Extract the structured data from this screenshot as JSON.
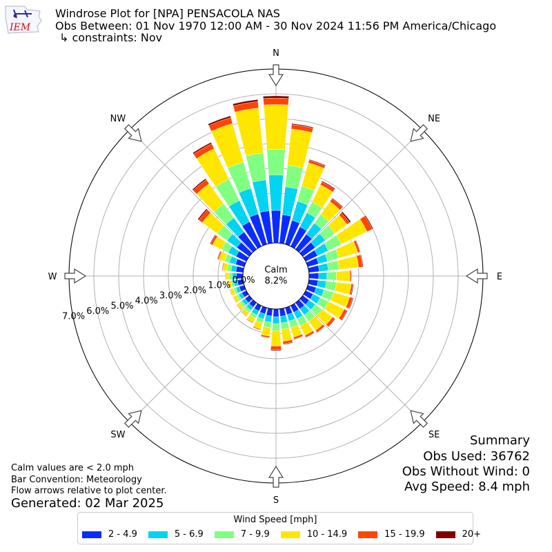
{
  "header": {
    "title": "Windrose Plot for [NPA] PENSACOLA NAS",
    "obs_between": "Obs Between: 01 Nov 1970 12:00 AM - 30 Nov 2024 11:56 PM America/Chicago",
    "constraints": "↳ constraints: Nov",
    "logo_text": "IEM"
  },
  "notes": {
    "calm_note": "Calm values are < 2.0 mph",
    "bar_convention": "Bar Convention: Meteorology",
    "flow_arrows": "Flow arrows relative to plot center.",
    "generated": "Generated: 02 Mar 2025"
  },
  "summary": {
    "title": "Summary",
    "obs_used": "Obs Used: 36762",
    "obs_without_wind": "Obs Without Wind: 0",
    "avg_speed": "Avg Speed: 8.4 mph"
  },
  "chart_data": {
    "type": "windrose",
    "directions_label": [
      "N",
      "NE",
      "E",
      "SE",
      "S",
      "SW",
      "W",
      "NW"
    ],
    "radial_ticks": [
      "0.0%",
      "1.0%",
      "2.0%",
      "3.0%",
      "4.0%",
      "5.0%",
      "6.0%",
      "7.0%"
    ],
    "radial_max": 7.0,
    "calm_label": "Calm",
    "calm_value": "8.2%",
    "legend_title": "Wind Speed [mph]",
    "bins": [
      "2 - 4.9",
      "5 - 6.9",
      "7 - 9.9",
      "10 - 14.9",
      "15 - 19.9",
      "20+"
    ],
    "colors": [
      "#0b2cff",
      "#00d4f0",
      "#80ff80",
      "#ffe600",
      "#ff4500",
      "#800000"
    ],
    "sector_width_deg": 10,
    "sectors": [
      {
        "dir": 0,
        "values": [
          1.31,
          1.43,
          1.03,
          1.8,
          0.26,
          0.09
        ]
      },
      {
        "dir": 10,
        "values": [
          1.15,
          1.13,
          0.87,
          1.47,
          0.18,
          0.04
        ]
      },
      {
        "dir": 20,
        "values": [
          1.0,
          0.8,
          0.63,
          0.98,
          0.11,
          0.03
        ]
      },
      {
        "dir": 30,
        "values": [
          0.87,
          0.63,
          0.48,
          0.77,
          0.13,
          0.04
        ]
      },
      {
        "dir": 40,
        "values": [
          0.75,
          0.55,
          0.43,
          0.64,
          0.14,
          0.03
        ]
      },
      {
        "dir": 50,
        "values": [
          0.62,
          0.5,
          0.47,
          0.61,
          0.13,
          0.06
        ]
      },
      {
        "dir": 60,
        "values": [
          0.53,
          0.48,
          0.58,
          1.16,
          0.23,
          0.04
        ]
      },
      {
        "dir": 70,
        "values": [
          0.45,
          0.38,
          0.47,
          0.79,
          0.09,
          0.02
        ]
      },
      {
        "dir": 80,
        "values": [
          0.42,
          0.37,
          0.43,
          0.79,
          0.16,
          0.03
        ]
      },
      {
        "dir": 90,
        "values": [
          0.39,
          0.33,
          0.38,
          0.54,
          0.05,
          0.02
        ]
      },
      {
        "dir": 100,
        "values": [
          0.37,
          0.34,
          0.4,
          0.6,
          0.07,
          0.03
        ]
      },
      {
        "dir": 110,
        "values": [
          0.35,
          0.33,
          0.4,
          0.67,
          0.13,
          0.03
        ]
      },
      {
        "dir": 120,
        "values": [
          0.33,
          0.32,
          0.37,
          0.7,
          0.12,
          0.03
        ]
      },
      {
        "dir": 130,
        "values": [
          0.32,
          0.3,
          0.33,
          0.53,
          0.1,
          0.03
        ]
      },
      {
        "dir": 140,
        "values": [
          0.31,
          0.3,
          0.3,
          0.47,
          0.09,
          0.02
        ]
      },
      {
        "dir": 150,
        "values": [
          0.3,
          0.29,
          0.3,
          0.44,
          0.08,
          0.02
        ]
      },
      {
        "dir": 160,
        "values": [
          0.29,
          0.27,
          0.27,
          0.4,
          0.08,
          0.02
        ]
      },
      {
        "dir": 170,
        "values": [
          0.3,
          0.27,
          0.26,
          0.48,
          0.1,
          0.03
        ]
      },
      {
        "dir": 180,
        "values": [
          0.31,
          0.28,
          0.28,
          0.62,
          0.14,
          0.04
        ]
      },
      {
        "dir": 190,
        "values": [
          0.29,
          0.25,
          0.22,
          0.34,
          0.06,
          0.02
        ]
      },
      {
        "dir": 200,
        "values": [
          0.26,
          0.21,
          0.17,
          0.25,
          0.04,
          0.01
        ]
      },
      {
        "dir": 210,
        "values": [
          0.24,
          0.18,
          0.14,
          0.19,
          0.03,
          0.01
        ]
      },
      {
        "dir": 220,
        "values": [
          0.22,
          0.16,
          0.12,
          0.16,
          0.02,
          0.01
        ]
      },
      {
        "dir": 230,
        "values": [
          0.21,
          0.15,
          0.11,
          0.14,
          0.02,
          0.01
        ]
      },
      {
        "dir": 240,
        "values": [
          0.2,
          0.14,
          0.1,
          0.13,
          0.02,
          0.01
        ]
      },
      {
        "dir": 250,
        "values": [
          0.21,
          0.14,
          0.1,
          0.14,
          0.02,
          0.01
        ]
      },
      {
        "dir": 260,
        "values": [
          0.23,
          0.15,
          0.11,
          0.14,
          0.02,
          0.01
        ]
      },
      {
        "dir": 270,
        "values": [
          0.26,
          0.17,
          0.13,
          0.13,
          0.02,
          0.01
        ]
      },
      {
        "dir": 280,
        "values": [
          0.29,
          0.2,
          0.16,
          0.17,
          0.03,
          0.01
        ]
      },
      {
        "dir": 290,
        "values": [
          0.36,
          0.26,
          0.2,
          0.24,
          0.05,
          0.02
        ]
      },
      {
        "dir": 300,
        "values": [
          0.46,
          0.35,
          0.3,
          0.4,
          0.09,
          0.03
        ]
      },
      {
        "dir": 310,
        "values": [
          0.62,
          0.48,
          0.48,
          0.75,
          0.18,
          0.05
        ]
      },
      {
        "dir": 320,
        "values": [
          0.86,
          0.7,
          0.7,
          1.0,
          0.2,
          0.05
        ]
      },
      {
        "dir": 330,
        "values": [
          1.1,
          0.95,
          0.95,
          1.37,
          0.22,
          0.06
        ]
      },
      {
        "dir": 340,
        "values": [
          1.27,
          1.07,
          1.09,
          1.62,
          0.25,
          0.07
        ]
      },
      {
        "dir": 350,
        "values": [
          1.31,
          1.25,
          1.09,
          1.82,
          0.26,
          0.08
        ]
      }
    ]
  }
}
